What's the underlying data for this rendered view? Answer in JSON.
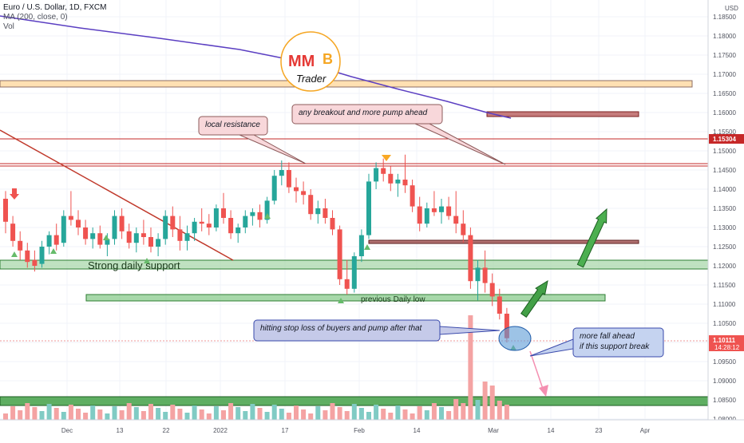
{
  "header": {
    "symbol_line": "Euro / U.S. Dollar, 1D, FXCM",
    "ma_line": "MA (200, close, 0)",
    "vol_line": "Vol"
  },
  "logo": {
    "letters_left": "MM",
    "letters_right": "B",
    "word": "Trader"
  },
  "colors": {
    "up": "#26a69a",
    "down": "#ef5350",
    "ma": "#5b3fc2",
    "resistance": "#c62828",
    "support_fill": "#a5d6a7",
    "support_border": "#2e7d32",
    "volume_up": "#26a69a",
    "volume_down": "#ef5350",
    "callout_pink": "#f8d7da",
    "callout_blue": "#c5cae9"
  },
  "price_axis": {
    "currency": "USD",
    "ticks": [
      "1.18500",
      "1.18000",
      "1.17500",
      "1.17000",
      "1.16500",
      "1.16000",
      "1.15500",
      "1.15000",
      "1.14500",
      "1.14000",
      "1.13500",
      "1.13000",
      "1.12500",
      "1.12000",
      "1.11500",
      "1.11000",
      "1.10500",
      "1.10000",
      "1.09500",
      "1.09000",
      "1.08500",
      "1.08000"
    ],
    "resistance_label": "1.15304",
    "last_price_label": "1.10111",
    "countdown_label": "14:28:12"
  },
  "time_axis": {
    "ticks": [
      "Dec",
      "13",
      "22",
      "2022",
      "17",
      "Feb",
      "14",
      "Mar",
      "14",
      "23",
      "Apr"
    ]
  },
  "annotations": {
    "local_resistance": "local resistance",
    "breakout": "any breakout and more pump ahead",
    "strong_support": "Strong daily support",
    "previous_low": "previous Daily low",
    "stop_loss": "hitting stop loss of buyers and pump after that",
    "more_fall_line1": "more fall ahead",
    "more_fall_line2": "if this support break"
  },
  "chart_data": {
    "type": "candlestick",
    "title": "Euro / U.S. Dollar, 1D, FXCM",
    "ylim": [
      1.078,
      1.1895
    ],
    "y_scale": "linear",
    "grid": true,
    "candles": [
      [
        1.1375,
        1.1395,
        1.1285,
        1.1315
      ],
      [
        1.131,
        1.133,
        1.125,
        1.1265
      ],
      [
        1.1265,
        1.129,
        1.1215,
        1.124
      ],
      [
        1.124,
        1.126,
        1.1195,
        1.121
      ],
      [
        1.1215,
        1.124,
        1.1185,
        1.12
      ],
      [
        1.1205,
        1.1265,
        1.1195,
        1.125
      ],
      [
        1.125,
        1.129,
        1.123,
        1.128
      ],
      [
        1.128,
        1.131,
        1.124,
        1.1255
      ],
      [
        1.126,
        1.1345,
        1.125,
        1.133
      ],
      [
        1.133,
        1.1395,
        1.1305,
        1.132
      ],
      [
        1.132,
        1.1345,
        1.128,
        1.13
      ],
      [
        1.13,
        1.132,
        1.1255,
        1.127
      ],
      [
        1.127,
        1.13,
        1.1245,
        1.1285
      ],
      [
        1.1285,
        1.1305,
        1.1245,
        1.1255
      ],
      [
        1.1255,
        1.1285,
        1.1225,
        1.127
      ],
      [
        1.127,
        1.1345,
        1.1255,
        1.133
      ],
      [
        1.133,
        1.135,
        1.127,
        1.129
      ],
      [
        1.129,
        1.131,
        1.1245,
        1.126
      ],
      [
        1.126,
        1.13,
        1.1235,
        1.1285
      ],
      [
        1.1285,
        1.132,
        1.1255,
        1.1275
      ],
      [
        1.1275,
        1.13,
        1.1235,
        1.125
      ],
      [
        1.125,
        1.1285,
        1.1225,
        1.127
      ],
      [
        1.127,
        1.1345,
        1.1255,
        1.133
      ],
      [
        1.133,
        1.1355,
        1.1275,
        1.1295
      ],
      [
        1.1295,
        1.133,
        1.124,
        1.1265
      ],
      [
        1.1265,
        1.1305,
        1.124,
        1.1285
      ],
      [
        1.1285,
        1.1325,
        1.1265,
        1.1315
      ],
      [
        1.1315,
        1.135,
        1.129,
        1.131
      ],
      [
        1.131,
        1.1335,
        1.128,
        1.13
      ],
      [
        1.13,
        1.136,
        1.129,
        1.135
      ],
      [
        1.135,
        1.139,
        1.131,
        1.1325
      ],
      [
        1.1325,
        1.1345,
        1.127,
        1.1285
      ],
      [
        1.1285,
        1.131,
        1.126,
        1.13
      ],
      [
        1.13,
        1.1345,
        1.1285,
        1.133
      ],
      [
        1.133,
        1.135,
        1.1305,
        1.134
      ],
      [
        1.134,
        1.136,
        1.13,
        1.132
      ],
      [
        1.132,
        1.138,
        1.131,
        1.137
      ],
      [
        1.137,
        1.145,
        1.136,
        1.1435
      ],
      [
        1.1435,
        1.1475,
        1.141,
        1.145
      ],
      [
        1.145,
        1.147,
        1.139,
        1.1405
      ],
      [
        1.1405,
        1.143,
        1.1365,
        1.1395
      ],
      [
        1.1395,
        1.142,
        1.136,
        1.1385
      ],
      [
        1.1385,
        1.14,
        1.132,
        1.1335
      ],
      [
        1.1335,
        1.137,
        1.131,
        1.135
      ],
      [
        1.135,
        1.1375,
        1.131,
        1.1325
      ],
      [
        1.1325,
        1.1345,
        1.128,
        1.1295
      ],
      [
        1.1295,
        1.1305,
        1.115,
        1.1165
      ],
      [
        1.1165,
        1.1215,
        1.1125,
        1.114
      ],
      [
        1.114,
        1.1235,
        1.113,
        1.1225
      ],
      [
        1.1225,
        1.1295,
        1.121,
        1.128
      ],
      [
        1.128,
        1.144,
        1.127,
        1.142
      ],
      [
        1.142,
        1.147,
        1.14,
        1.1455
      ],
      [
        1.1455,
        1.148,
        1.142,
        1.144
      ],
      [
        1.144,
        1.146,
        1.1395,
        1.1415
      ],
      [
        1.1415,
        1.144,
        1.138,
        1.1425
      ],
      [
        1.1425,
        1.149,
        1.139,
        1.141
      ],
      [
        1.141,
        1.1425,
        1.134,
        1.1355
      ],
      [
        1.1355,
        1.138,
        1.129,
        1.131
      ],
      [
        1.131,
        1.1365,
        1.13,
        1.135
      ],
      [
        1.135,
        1.1395,
        1.133,
        1.134
      ],
      [
        1.134,
        1.1375,
        1.131,
        1.1355
      ],
      [
        1.1355,
        1.138,
        1.132,
        1.133
      ],
      [
        1.133,
        1.1395,
        1.1285,
        1.131
      ],
      [
        1.131,
        1.1345,
        1.126,
        1.128
      ],
      [
        1.128,
        1.13,
        1.114,
        1.116
      ],
      [
        1.116,
        1.1215,
        1.111,
        1.1195
      ],
      [
        1.1195,
        1.124,
        1.113,
        1.1155
      ],
      [
        1.1155,
        1.118,
        1.1095,
        1.112
      ],
      [
        1.112,
        1.114,
        1.106,
        1.1075
      ],
      [
        1.1075,
        1.109,
        1.1,
        1.1011
      ]
    ],
    "volume_max_label": null
  }
}
